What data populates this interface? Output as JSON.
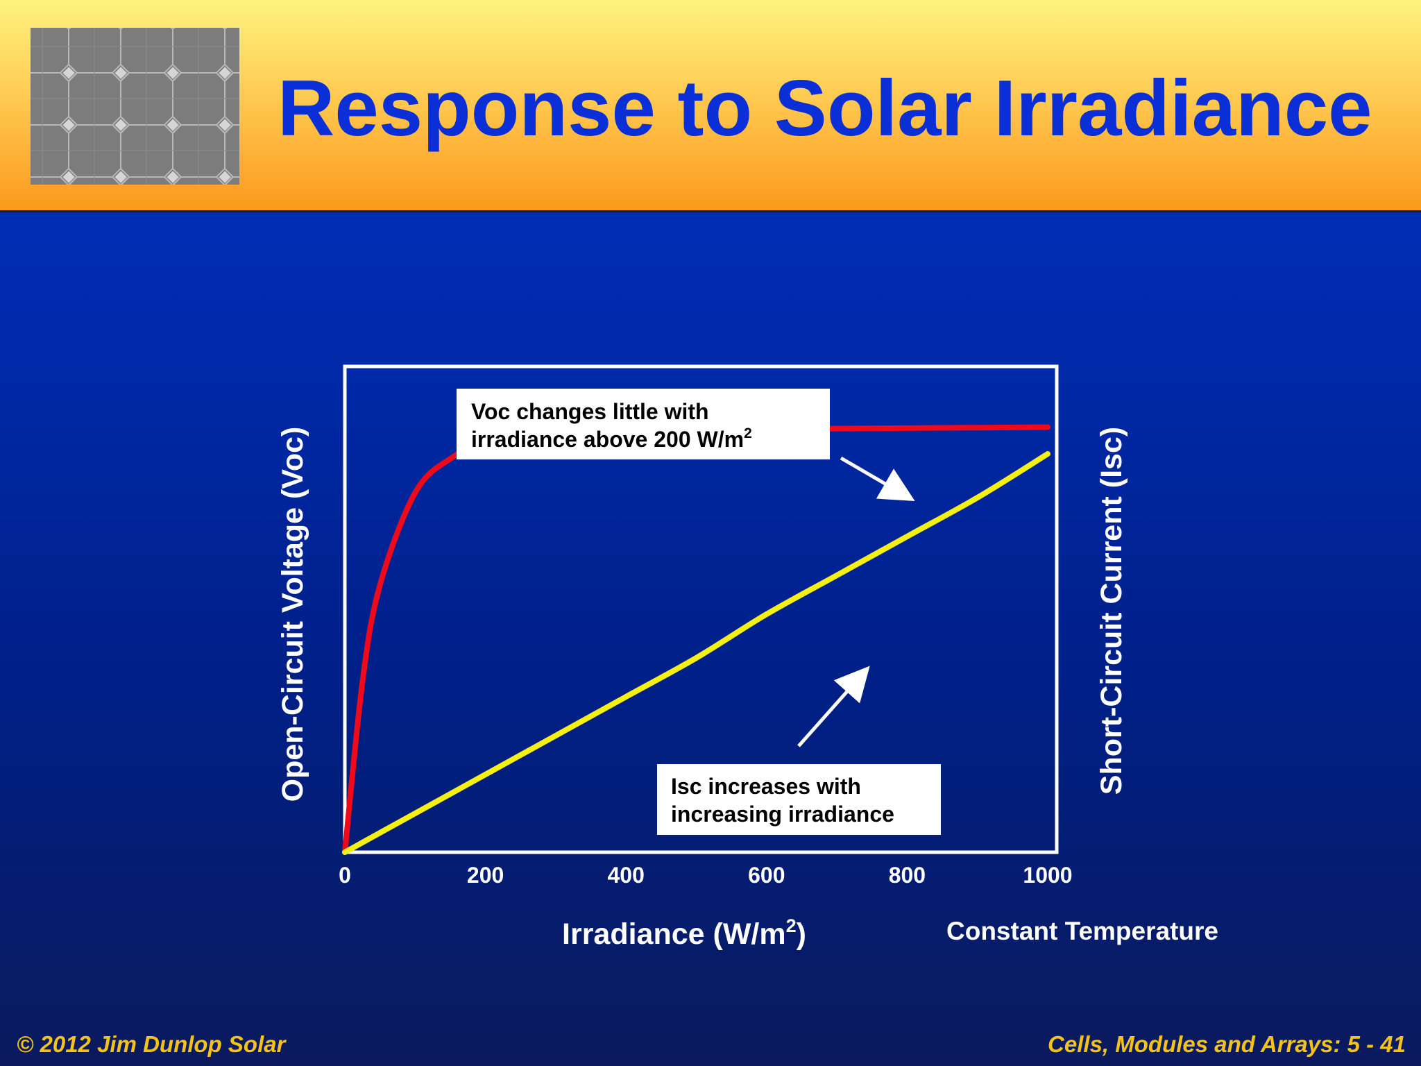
{
  "slide": {
    "title": "Response to Solar Irradiance",
    "footer_left": "© 2012 Jim Dunlop Solar",
    "footer_right": "Cells, Modules and Arrays: 5 - 41"
  },
  "chart_data": {
    "type": "line",
    "x": [
      0,
      25,
      50,
      100,
      150,
      200,
      300,
      400,
      500,
      600,
      700,
      800,
      900,
      1000
    ],
    "series": [
      {
        "values": [
          0,
          0.35,
          0.55,
          0.74,
          0.81,
          0.84,
          0.86,
          0.865,
          0.868,
          0.87,
          0.872,
          0.873,
          0.874,
          0.875
        ],
        "color": "#ee0a1a"
      },
      {
        "values": [
          0,
          0.02,
          0.04,
          0.08,
          0.12,
          0.16,
          0.24,
          0.32,
          0.4,
          0.49,
          0.57,
          0.65,
          0.73,
          0.82
        ],
        "color": "#f4f012"
      }
    ],
    "xlabel_prefix": "Irradiance (W/m",
    "xlabel_sup": "2",
    "xlabel_suffix": ")",
    "ylabel_left": "Open-Circuit Voltage (Voc)",
    "ylabel_right": "Short-Circuit Current (Isc)",
    "xticks": [
      "0",
      "200",
      "400",
      "600",
      "800",
      "1000"
    ],
    "xlim": [
      0,
      1000
    ],
    "ylim": [
      0,
      1
    ],
    "note": "Constant Temperature",
    "annotations": {
      "voc_line1": "Voc changes little with",
      "voc_line2_prefix": "irradiance above 200 W/m",
      "voc_line2_sup": "2",
      "isc_line1": "Isc increases with",
      "isc_line2": "increasing irradiance"
    },
    "grid": false
  }
}
